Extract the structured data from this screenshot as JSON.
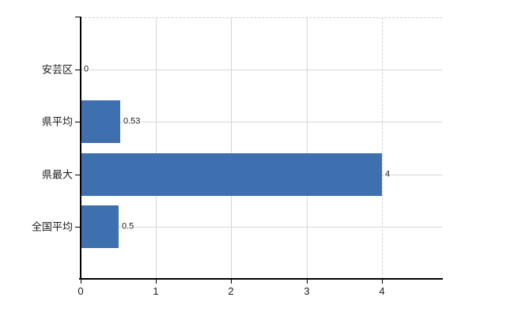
{
  "chart_data": {
    "type": "bar",
    "orientation": "horizontal",
    "title": "",
    "xlabel": "",
    "ylabel": "",
    "categories": [
      "安芸区",
      "県平均",
      "県最大",
      "全国平均"
    ],
    "values": [
      0,
      0.53,
      4,
      0.5
    ],
    "value_labels": [
      "0",
      "0.53",
      "4",
      "0.5"
    ],
    "xtick_labels": [
      "0",
      "1",
      "2",
      "3",
      "4"
    ],
    "xtick_values": [
      0,
      1,
      2,
      3,
      4
    ],
    "xlim": [
      0,
      4.8
    ],
    "grid": "on",
    "legend": "none",
    "colors": {
      "bar": "#3e70af",
      "grid_solid": "#d3d8d1",
      "grid_dashed": "#d6d1d5",
      "axis": "#000000",
      "text": "#1c1c1c"
    }
  }
}
